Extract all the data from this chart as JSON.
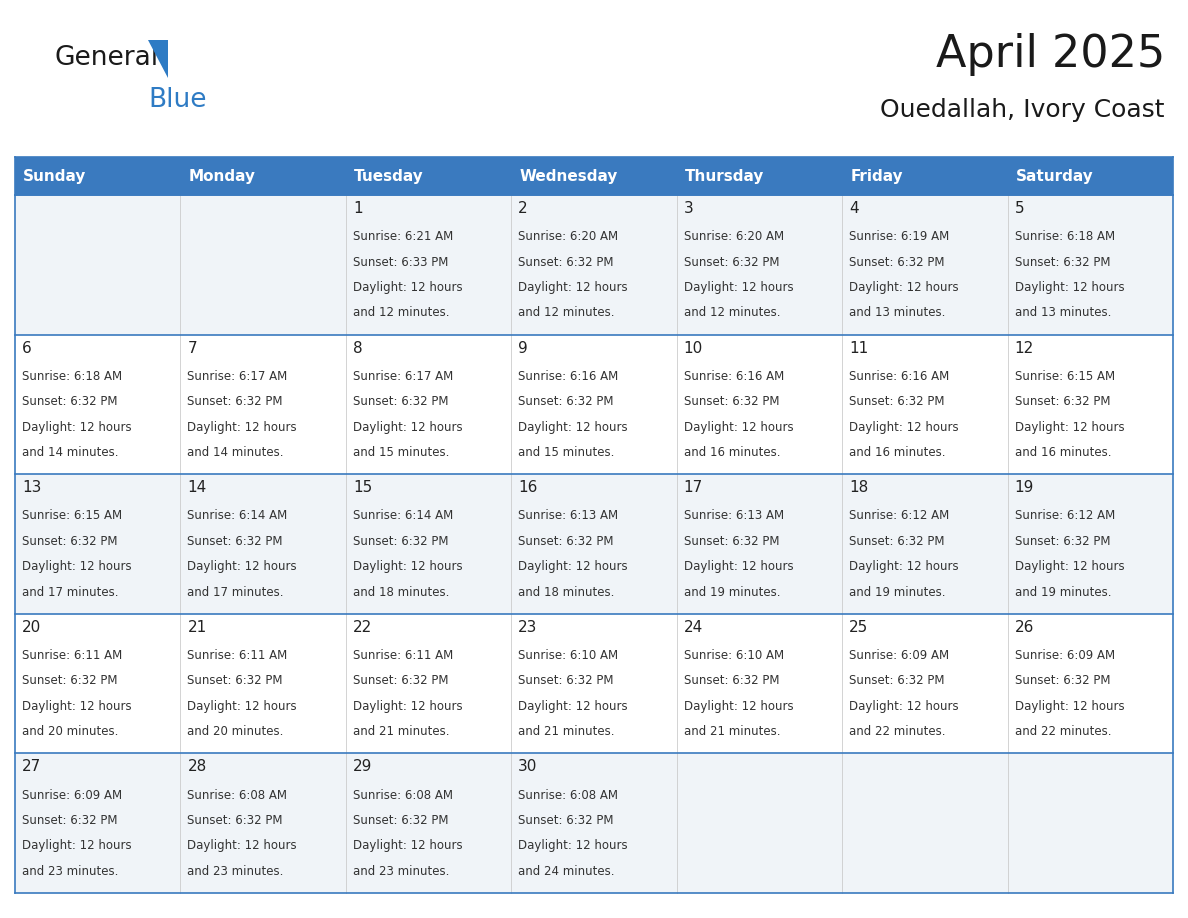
{
  "title": "April 2025",
  "subtitle": "Ouedallah, Ivory Coast",
  "header_bg": "#3a7abf",
  "header_text_color": "#ffffff",
  "cell_bg_even": "#f0f4f8",
  "cell_bg_odd": "#ffffff",
  "border_color": "#3a7abf",
  "cell_border_color": "#aaaaaa",
  "day_names": [
    "Sunday",
    "Monday",
    "Tuesday",
    "Wednesday",
    "Thursday",
    "Friday",
    "Saturday"
  ],
  "weeks": [
    [
      {
        "day": "",
        "sunrise": "",
        "sunset": "",
        "daylight1": "",
        "daylight2": ""
      },
      {
        "day": "",
        "sunrise": "",
        "sunset": "",
        "daylight1": "",
        "daylight2": ""
      },
      {
        "day": "1",
        "sunrise": "Sunrise: 6:21 AM",
        "sunset": "Sunset: 6:33 PM",
        "daylight1": "Daylight: 12 hours",
        "daylight2": "and 12 minutes."
      },
      {
        "day": "2",
        "sunrise": "Sunrise: 6:20 AM",
        "sunset": "Sunset: 6:32 PM",
        "daylight1": "Daylight: 12 hours",
        "daylight2": "and 12 minutes."
      },
      {
        "day": "3",
        "sunrise": "Sunrise: 6:20 AM",
        "sunset": "Sunset: 6:32 PM",
        "daylight1": "Daylight: 12 hours",
        "daylight2": "and 12 minutes."
      },
      {
        "day": "4",
        "sunrise": "Sunrise: 6:19 AM",
        "sunset": "Sunset: 6:32 PM",
        "daylight1": "Daylight: 12 hours",
        "daylight2": "and 13 minutes."
      },
      {
        "day": "5",
        "sunrise": "Sunrise: 6:18 AM",
        "sunset": "Sunset: 6:32 PM",
        "daylight1": "Daylight: 12 hours",
        "daylight2": "and 13 minutes."
      }
    ],
    [
      {
        "day": "6",
        "sunrise": "Sunrise: 6:18 AM",
        "sunset": "Sunset: 6:32 PM",
        "daylight1": "Daylight: 12 hours",
        "daylight2": "and 14 minutes."
      },
      {
        "day": "7",
        "sunrise": "Sunrise: 6:17 AM",
        "sunset": "Sunset: 6:32 PM",
        "daylight1": "Daylight: 12 hours",
        "daylight2": "and 14 minutes."
      },
      {
        "day": "8",
        "sunrise": "Sunrise: 6:17 AM",
        "sunset": "Sunset: 6:32 PM",
        "daylight1": "Daylight: 12 hours",
        "daylight2": "and 15 minutes."
      },
      {
        "day": "9",
        "sunrise": "Sunrise: 6:16 AM",
        "sunset": "Sunset: 6:32 PM",
        "daylight1": "Daylight: 12 hours",
        "daylight2": "and 15 minutes."
      },
      {
        "day": "10",
        "sunrise": "Sunrise: 6:16 AM",
        "sunset": "Sunset: 6:32 PM",
        "daylight1": "Daylight: 12 hours",
        "daylight2": "and 16 minutes."
      },
      {
        "day": "11",
        "sunrise": "Sunrise: 6:16 AM",
        "sunset": "Sunset: 6:32 PM",
        "daylight1": "Daylight: 12 hours",
        "daylight2": "and 16 minutes."
      },
      {
        "day": "12",
        "sunrise": "Sunrise: 6:15 AM",
        "sunset": "Sunset: 6:32 PM",
        "daylight1": "Daylight: 12 hours",
        "daylight2": "and 16 minutes."
      }
    ],
    [
      {
        "day": "13",
        "sunrise": "Sunrise: 6:15 AM",
        "sunset": "Sunset: 6:32 PM",
        "daylight1": "Daylight: 12 hours",
        "daylight2": "and 17 minutes."
      },
      {
        "day": "14",
        "sunrise": "Sunrise: 6:14 AM",
        "sunset": "Sunset: 6:32 PM",
        "daylight1": "Daylight: 12 hours",
        "daylight2": "and 17 minutes."
      },
      {
        "day": "15",
        "sunrise": "Sunrise: 6:14 AM",
        "sunset": "Sunset: 6:32 PM",
        "daylight1": "Daylight: 12 hours",
        "daylight2": "and 18 minutes."
      },
      {
        "day": "16",
        "sunrise": "Sunrise: 6:13 AM",
        "sunset": "Sunset: 6:32 PM",
        "daylight1": "Daylight: 12 hours",
        "daylight2": "and 18 minutes."
      },
      {
        "day": "17",
        "sunrise": "Sunrise: 6:13 AM",
        "sunset": "Sunset: 6:32 PM",
        "daylight1": "Daylight: 12 hours",
        "daylight2": "and 19 minutes."
      },
      {
        "day": "18",
        "sunrise": "Sunrise: 6:12 AM",
        "sunset": "Sunset: 6:32 PM",
        "daylight1": "Daylight: 12 hours",
        "daylight2": "and 19 minutes."
      },
      {
        "day": "19",
        "sunrise": "Sunrise: 6:12 AM",
        "sunset": "Sunset: 6:32 PM",
        "daylight1": "Daylight: 12 hours",
        "daylight2": "and 19 minutes."
      }
    ],
    [
      {
        "day": "20",
        "sunrise": "Sunrise: 6:11 AM",
        "sunset": "Sunset: 6:32 PM",
        "daylight1": "Daylight: 12 hours",
        "daylight2": "and 20 minutes."
      },
      {
        "day": "21",
        "sunrise": "Sunrise: 6:11 AM",
        "sunset": "Sunset: 6:32 PM",
        "daylight1": "Daylight: 12 hours",
        "daylight2": "and 20 minutes."
      },
      {
        "day": "22",
        "sunrise": "Sunrise: 6:11 AM",
        "sunset": "Sunset: 6:32 PM",
        "daylight1": "Daylight: 12 hours",
        "daylight2": "and 21 minutes."
      },
      {
        "day": "23",
        "sunrise": "Sunrise: 6:10 AM",
        "sunset": "Sunset: 6:32 PM",
        "daylight1": "Daylight: 12 hours",
        "daylight2": "and 21 minutes."
      },
      {
        "day": "24",
        "sunrise": "Sunrise: 6:10 AM",
        "sunset": "Sunset: 6:32 PM",
        "daylight1": "Daylight: 12 hours",
        "daylight2": "and 21 minutes."
      },
      {
        "day": "25",
        "sunrise": "Sunrise: 6:09 AM",
        "sunset": "Sunset: 6:32 PM",
        "daylight1": "Daylight: 12 hours",
        "daylight2": "and 22 minutes."
      },
      {
        "day": "26",
        "sunrise": "Sunrise: 6:09 AM",
        "sunset": "Sunset: 6:32 PM",
        "daylight1": "Daylight: 12 hours",
        "daylight2": "and 22 minutes."
      }
    ],
    [
      {
        "day": "27",
        "sunrise": "Sunrise: 6:09 AM",
        "sunset": "Sunset: 6:32 PM",
        "daylight1": "Daylight: 12 hours",
        "daylight2": "and 23 minutes."
      },
      {
        "day": "28",
        "sunrise": "Sunrise: 6:08 AM",
        "sunset": "Sunset: 6:32 PM",
        "daylight1": "Daylight: 12 hours",
        "daylight2": "and 23 minutes."
      },
      {
        "day": "29",
        "sunrise": "Sunrise: 6:08 AM",
        "sunset": "Sunset: 6:32 PM",
        "daylight1": "Daylight: 12 hours",
        "daylight2": "and 23 minutes."
      },
      {
        "day": "30",
        "sunrise": "Sunrise: 6:08 AM",
        "sunset": "Sunset: 6:32 PM",
        "daylight1": "Daylight: 12 hours",
        "daylight2": "and 24 minutes."
      },
      {
        "day": "",
        "sunrise": "",
        "sunset": "",
        "daylight1": "",
        "daylight2": ""
      },
      {
        "day": "",
        "sunrise": "",
        "sunset": "",
        "daylight1": "",
        "daylight2": ""
      },
      {
        "day": "",
        "sunrise": "",
        "sunset": "",
        "daylight1": "",
        "daylight2": ""
      }
    ]
  ],
  "logo_text_general": "General",
  "logo_text_blue": "Blue",
  "logo_color_general": "#1a1a1a",
  "logo_color_blue": "#2e7bc4",
  "logo_triangle_color": "#2e7bc4",
  "title_fontsize": 32,
  "subtitle_fontsize": 18,
  "header_fontsize": 11,
  "day_num_fontsize": 11,
  "cell_text_fontsize": 8.5
}
